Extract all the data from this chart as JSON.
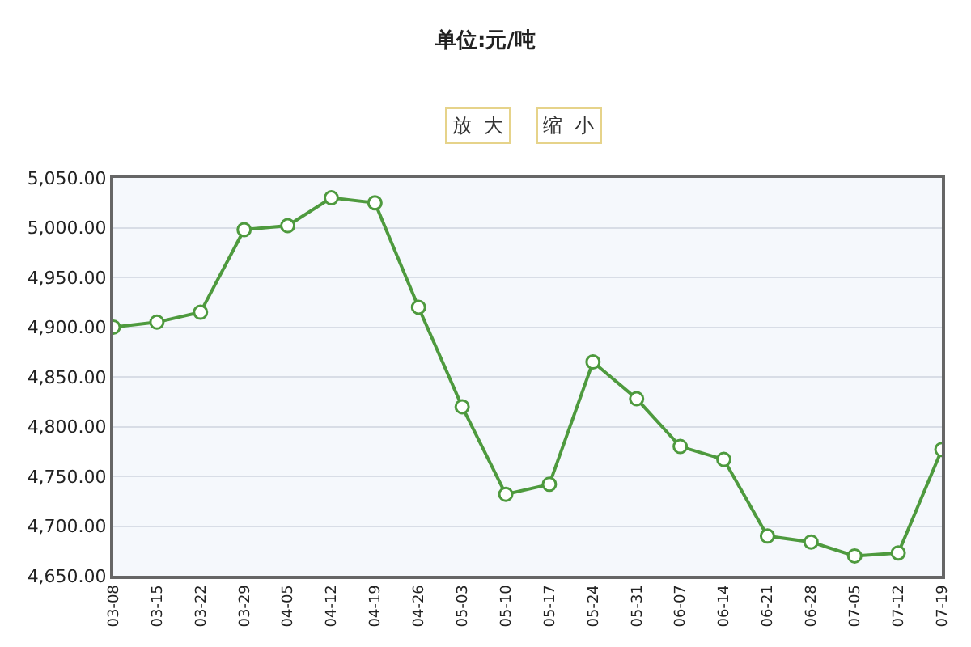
{
  "chart_data": {
    "type": "line",
    "title": "单位:元/吨",
    "annotations": [
      "放  大",
      "缩  小"
    ],
    "categories": [
      "03-08",
      "03-15",
      "03-22",
      "03-29",
      "04-05",
      "04-12",
      "04-19",
      "04-26",
      "05-03",
      "05-10",
      "05-17",
      "05-24",
      "05-31",
      "06-07",
      "06-14",
      "06-21",
      "06-28",
      "07-05",
      "07-12",
      "07-19"
    ],
    "series": [
      {
        "color": "#4e9a3e",
        "values": [
          4900,
          4905,
          4915,
          4998,
          5002,
          5030,
          5025,
          4920,
          4820,
          4732,
          4742,
          4865,
          4828,
          4780,
          4767,
          4690,
          4684,
          4670,
          4673,
          4777
        ]
      }
    ],
    "ylim": [
      4650,
      5050
    ],
    "yticks": [
      {
        "value": 4650,
        "label": "4,650.00"
      },
      {
        "value": 4700,
        "label": "4,700.00"
      },
      {
        "value": 4750,
        "label": "4,750.00"
      },
      {
        "value": 4800,
        "label": "4,800.00"
      },
      {
        "value": 4850,
        "label": "4,850.00"
      },
      {
        "value": 4900,
        "label": "4,900.00"
      },
      {
        "value": 4950,
        "label": "4,950.00"
      },
      {
        "value": 5000,
        "label": "5,000.00"
      },
      {
        "value": 5050,
        "label": "5,050.00"
      }
    ],
    "grid": "y",
    "marker": "circle",
    "line_style": "solid",
    "legend": false
  }
}
